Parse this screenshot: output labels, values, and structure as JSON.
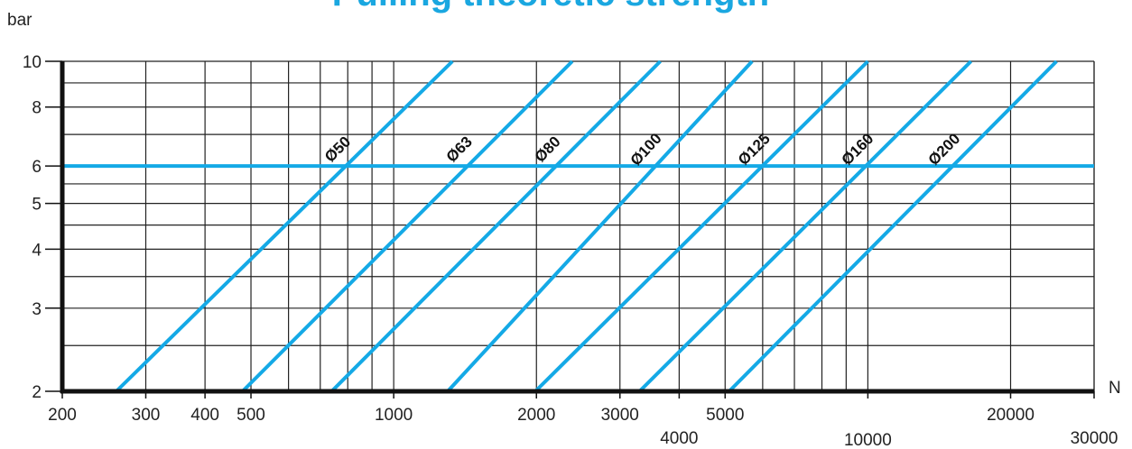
{
  "chart_data": {
    "type": "line",
    "title": "Pulling theoretic strength",
    "xlabel": "N",
    "ylabel": "bar",
    "x_scale": "log",
    "y_scale": "log",
    "xlim": [
      200,
      30000
    ],
    "ylim": [
      2,
      10
    ],
    "x_tick_labels": [
      "200",
      "300",
      "400",
      "500",
      "1000",
      "2000",
      "3000",
      "4000",
      "5000",
      "10000",
      "20000",
      "30000"
    ],
    "y_tick_labels": [
      "2",
      "3",
      "4",
      "5",
      "6",
      "8",
      "10"
    ],
    "grid": true,
    "reference_line": {
      "y": 6
    },
    "series": [
      {
        "name": "Ø50",
        "x": [
          260,
          1330
        ],
        "y": [
          2,
          10
        ]
      },
      {
        "name": "Ø63",
        "x": [
          480,
          2380
        ],
        "y": [
          2,
          10
        ]
      },
      {
        "name": "Ø80",
        "x": [
          740,
          3650
        ],
        "y": [
          2,
          10
        ]
      },
      {
        "name": "Ø100",
        "x": [
          1300,
          5700
        ],
        "y": [
          2,
          10
        ]
      },
      {
        "name": "Ø125",
        "x": [
          1990,
          10000
        ],
        "y": [
          2,
          10
        ]
      },
      {
        "name": "Ø160",
        "x": [
          3300,
          16500
        ],
        "y": [
          2,
          10
        ]
      },
      {
        "name": "Ø200",
        "x": [
          5100,
          25000
        ],
        "y": [
          2,
          10
        ]
      }
    ],
    "colors": {
      "series": "#14a9e6",
      "title": "#1aa7e0",
      "grid": "#222222"
    }
  }
}
